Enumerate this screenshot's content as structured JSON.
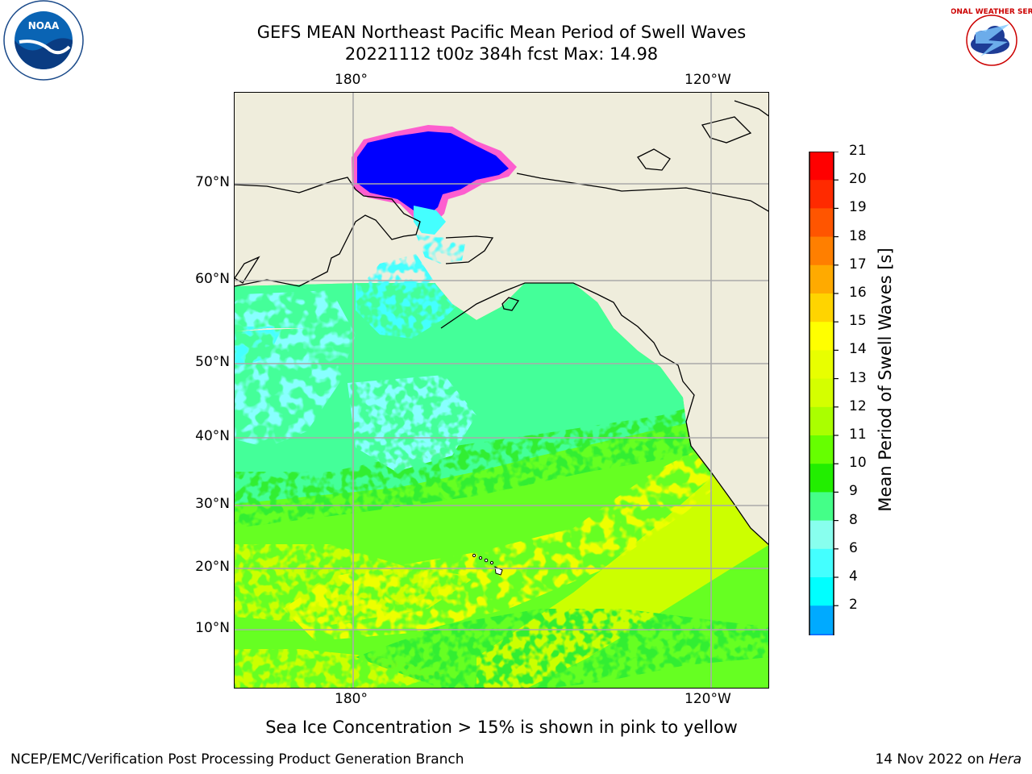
{
  "title": {
    "line1": "GEFS MEAN Northeast Pacific Mean Period of Swell Waves",
    "line2": "20221112 t00z 384h fcst   Max: 14.98"
  },
  "axes": {
    "lon_labels_top": [
      "180°",
      "120°W"
    ],
    "lon_labels_bottom": [
      "180°",
      "120°W"
    ],
    "lat_labels": [
      "70°N",
      "60°N",
      "50°N",
      "40°N",
      "30°N",
      "20°N",
      "10°N"
    ]
  },
  "colorbar": {
    "label": "Mean Period of Swell Waves [s]",
    "ticks": [
      "21",
      "20",
      "19",
      "18",
      "17",
      "16",
      "15",
      "14",
      "13",
      "12",
      "11",
      "10",
      "9",
      "8",
      "6",
      "4",
      "2"
    ],
    "colors_top_to_bottom": [
      "#ff0000",
      "#ff2a00",
      "#ff5500",
      "#ff7f00",
      "#ffaa00",
      "#ffd400",
      "#ffff00",
      "#e8ff00",
      "#d4ff00",
      "#aaff00",
      "#66ff00",
      "#22ee00",
      "#44ff88",
      "#88ffee",
      "#44ffff",
      "#00ffff",
      "#00aaff",
      "#0066ff"
    ],
    "extend_color": "#0000ff"
  },
  "map": {
    "land_color": "#efeddc",
    "ice_color": "#0000ff",
    "palette": {
      "dark_blue": "#0000ff",
      "cyan": "#44ffff",
      "light_cyan": "#88ffff",
      "aqua_green": "#44ff99",
      "green": "#33ee33",
      "lime": "#66ff22",
      "yellow_green": "#ccff00",
      "yellow": "#eeff00"
    }
  },
  "footer": {
    "note": "Sea Ice Concentration > 15% is shown in pink to yellow",
    "left": "NCEP/EMC/Verification Post Processing Product Generation Branch",
    "right_date": "14 Nov 2022 on",
    "right_host": "Hera"
  },
  "logos": {
    "noaa_text": "NOAA",
    "nws_text": "NATIONAL WEATHER SERVICE"
  }
}
